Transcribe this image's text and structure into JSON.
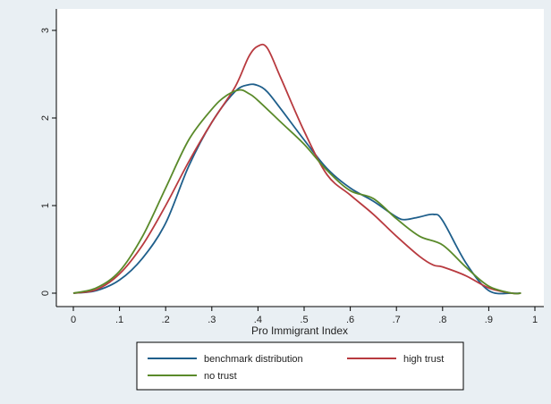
{
  "chart_data": {
    "type": "line",
    "title": "",
    "xlabel": "Pro Immigrant Index",
    "ylabel": "",
    "xlim": [
      -0.02,
      1.0
    ],
    "ylim": [
      -0.05,
      3.1
    ],
    "xticks": [
      0,
      0.1,
      0.2,
      0.3,
      0.4,
      0.5,
      0.6,
      0.7,
      0.8,
      0.9,
      1.0
    ],
    "xtick_labels": [
      "0",
      ".1",
      ".2",
      ".3",
      ".4",
      ".5",
      ".6",
      ".7",
      ".8",
      ".9",
      "1"
    ],
    "yticks": [
      0,
      1,
      2,
      3
    ],
    "ytick_labels": [
      "0",
      "1",
      "2",
      "3"
    ],
    "grid": false,
    "legend_position": "bottom",
    "colors": {
      "plot_bg": "#ffffff",
      "outer_bg": "#e9eff3"
    },
    "series": [
      {
        "name": "benchmark distribution",
        "color": "#1f5f8b",
        "x": [
          0,
          0.05,
          0.1,
          0.15,
          0.2,
          0.25,
          0.3,
          0.35,
          0.38,
          0.4,
          0.42,
          0.45,
          0.5,
          0.55,
          0.6,
          0.65,
          0.7,
          0.72,
          0.75,
          0.78,
          0.8,
          0.85,
          0.9,
          0.95,
          0.97
        ],
        "y": [
          0.0,
          0.03,
          0.15,
          0.4,
          0.8,
          1.45,
          1.95,
          2.3,
          2.38,
          2.37,
          2.3,
          2.1,
          1.75,
          1.42,
          1.2,
          1.05,
          0.87,
          0.84,
          0.87,
          0.9,
          0.83,
          0.35,
          0.03,
          0.0,
          0.0
        ]
      },
      {
        "name": "high trust",
        "color": "#b83a3f",
        "x": [
          0,
          0.05,
          0.1,
          0.15,
          0.2,
          0.25,
          0.3,
          0.35,
          0.38,
          0.4,
          0.42,
          0.45,
          0.5,
          0.55,
          0.6,
          0.65,
          0.7,
          0.75,
          0.78,
          0.8,
          0.85,
          0.9,
          0.95,
          0.97
        ],
        "y": [
          0.0,
          0.04,
          0.22,
          0.55,
          1.0,
          1.5,
          1.95,
          2.35,
          2.7,
          2.82,
          2.8,
          2.45,
          1.85,
          1.35,
          1.12,
          0.9,
          0.65,
          0.42,
          0.32,
          0.3,
          0.2,
          0.06,
          0.0,
          0.0
        ]
      },
      {
        "name": "no trust",
        "color": "#5a8a2a",
        "x": [
          0,
          0.05,
          0.1,
          0.15,
          0.2,
          0.25,
          0.3,
          0.33,
          0.36,
          0.38,
          0.4,
          0.45,
          0.5,
          0.55,
          0.6,
          0.65,
          0.7,
          0.75,
          0.8,
          0.85,
          0.9,
          0.95,
          0.97
        ],
        "y": [
          0.0,
          0.06,
          0.25,
          0.65,
          1.2,
          1.75,
          2.1,
          2.25,
          2.32,
          2.28,
          2.2,
          1.95,
          1.7,
          1.4,
          1.17,
          1.08,
          0.85,
          0.65,
          0.55,
          0.3,
          0.08,
          0.0,
          0.0
        ]
      }
    ]
  }
}
